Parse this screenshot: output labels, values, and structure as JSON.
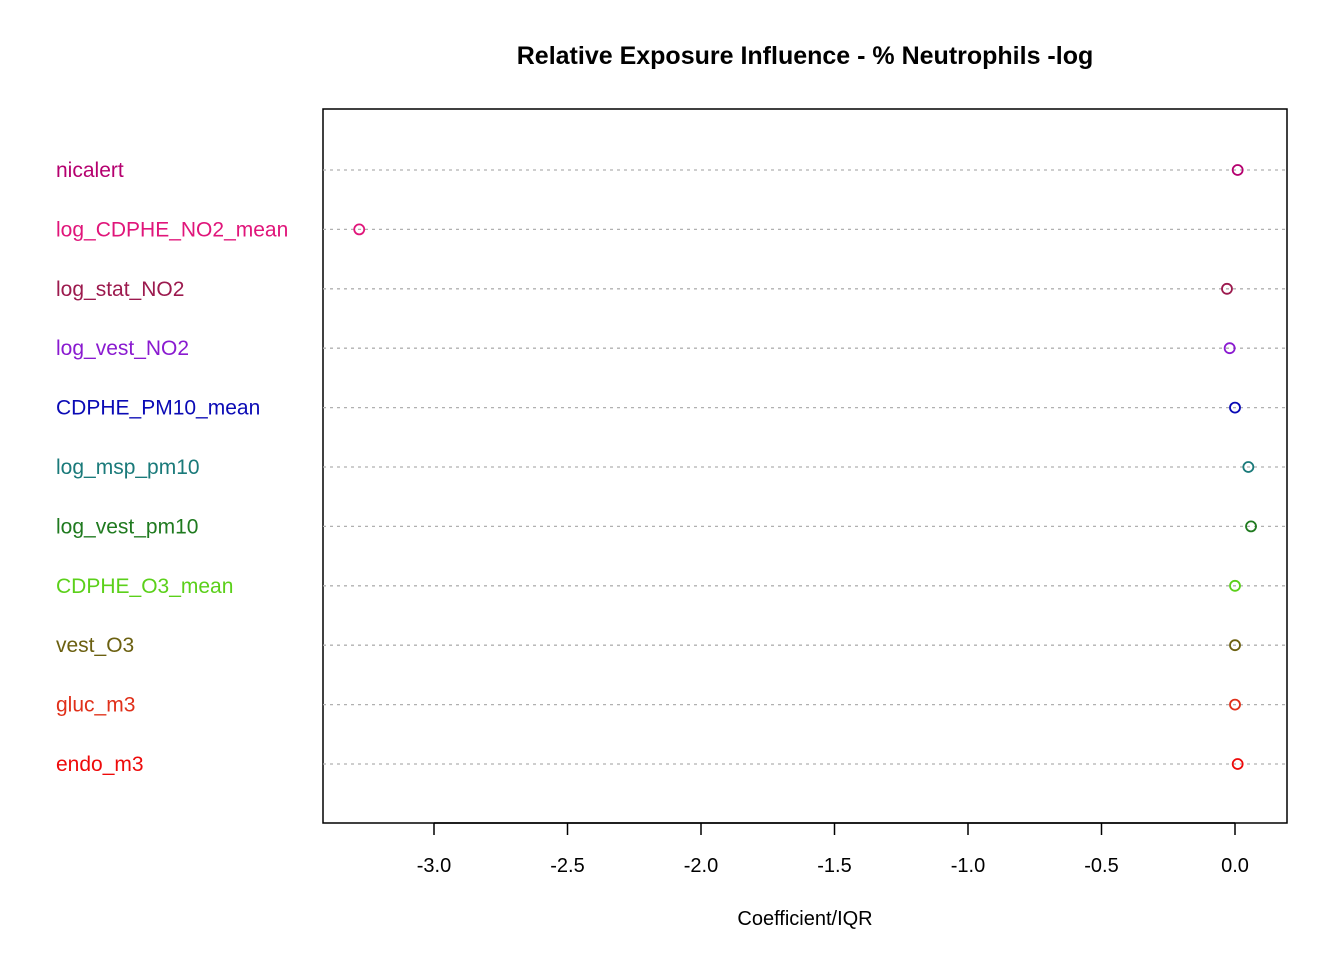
{
  "chart_data": {
    "type": "scatter",
    "title": "Relative Exposure Influence - % Neutrophils -log",
    "xlabel": "Coefficient/IQR",
    "ylabel": "",
    "xlim": [
      -3.42,
      0.19
    ],
    "x_ticks": [
      -3.0,
      -2.5,
      -2.0,
      -1.5,
      -1.0,
      -0.5,
      0.0
    ],
    "x_tick_labels": [
      "-3.0",
      "-2.5",
      "-2.0",
      "-1.5",
      "-1.0",
      "-0.5",
      "0.0"
    ],
    "grid": "horizontal dotted lines per category",
    "points": [
      {
        "label": "nicalert",
        "x": 0.01,
        "color": "#b5006f"
      },
      {
        "label": "log_CDPHE_NO2_mean",
        "x": -3.28,
        "color": "#e0157a"
      },
      {
        "label": "log_stat_NO2",
        "x": -0.03,
        "color": "#9c1a4e"
      },
      {
        "label": "log_vest_NO2",
        "x": -0.02,
        "color": "#8a1ad0"
      },
      {
        "label": "CDPHE_PM10_mean",
        "x": 0.0,
        "color": "#0a0ab5"
      },
      {
        "label": "log_msp_pm10",
        "x": 0.05,
        "color": "#1a7a7a"
      },
      {
        "label": "log_vest_pm10",
        "x": 0.06,
        "color": "#1f7a1f"
      },
      {
        "label": "CDPHE_O3_mean",
        "x": 0.0,
        "color": "#5bd01a"
      },
      {
        "label": "vest_O3",
        "x": 0.0,
        "color": "#6b6010"
      },
      {
        "label": "gluc_m3",
        "x": 0.0,
        "color": "#e0301a"
      },
      {
        "label": "endo_m3",
        "x": 0.01,
        "color": "#ee0a0a"
      }
    ]
  }
}
